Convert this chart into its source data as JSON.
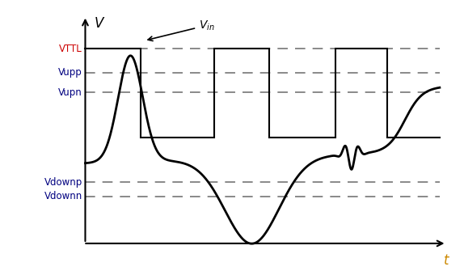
{
  "title": "",
  "xlabel": "t",
  "ylabel": "V",
  "background_color": "#ffffff",
  "line_color": "#000000",
  "dashed_color": "#808080",
  "vttl": 0.75,
  "vupp": 0.55,
  "vupn": 0.38,
  "vdownp": -0.38,
  "vdownn": -0.5,
  "xlim": [
    -0.05,
    10.5
  ],
  "ylim": [
    -0.95,
    1.05
  ],
  "square_wave": [
    [
      0.0,
      0.75
    ],
    [
      1.6,
      0.75
    ],
    [
      1.6,
      0.0
    ],
    [
      3.7,
      0.0
    ],
    [
      3.7,
      0.75
    ],
    [
      5.3,
      0.75
    ],
    [
      5.3,
      0.0
    ],
    [
      7.2,
      0.0
    ],
    [
      7.2,
      0.75
    ],
    [
      8.7,
      0.75
    ],
    [
      8.7,
      0.0
    ],
    [
      10.2,
      0.0
    ]
  ]
}
